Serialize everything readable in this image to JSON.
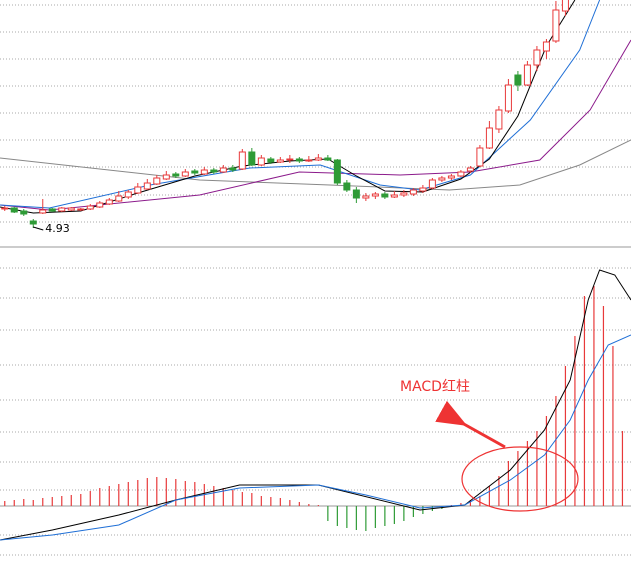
{
  "chart_data": [
    {
      "type": "candlestick",
      "xlim": [
        -0.5,
        65.9
      ],
      "ylim": [
        4.76,
        7.21
      ],
      "grid": true,
      "up_color": "#e8393a",
      "down_color": "#2e9b36",
      "candles": [
        [
          5.12,
          5.15,
          5.1,
          5.13
        ],
        [
          5.13,
          5.14,
          5.08,
          5.09
        ],
        [
          5.1,
          5.12,
          5.05,
          5.07
        ],
        [
          5.0,
          5.02,
          4.93,
          4.97
        ],
        [
          5.08,
          5.22,
          5.07,
          5.11
        ],
        [
          5.12,
          5.13,
          5.09,
          5.1
        ],
        [
          5.1,
          5.14,
          5.09,
          5.13
        ],
        [
          5.11,
          5.14,
          5.1,
          5.13
        ],
        [
          5.11,
          5.13,
          5.1,
          5.12
        ],
        [
          5.12,
          5.17,
          5.11,
          5.15
        ],
        [
          5.14,
          5.2,
          5.13,
          5.18
        ],
        [
          5.17,
          5.23,
          5.16,
          5.21
        ],
        [
          5.2,
          5.3,
          5.19,
          5.25
        ],
        [
          5.24,
          5.31,
          5.22,
          5.29
        ],
        [
          5.28,
          5.38,
          5.27,
          5.34
        ],
        [
          5.32,
          5.42,
          5.31,
          5.38
        ],
        [
          5.37,
          5.46,
          5.36,
          5.43
        ],
        [
          5.42,
          5.5,
          5.41,
          5.46
        ],
        [
          5.47,
          5.49,
          5.43,
          5.45
        ],
        [
          5.45,
          5.52,
          5.44,
          5.49
        ],
        [
          5.5,
          5.52,
          5.46,
          5.48
        ],
        [
          5.47,
          5.54,
          5.46,
          5.51
        ],
        [
          5.51,
          5.53,
          5.47,
          5.49
        ],
        [
          5.49,
          5.56,
          5.48,
          5.53
        ],
        [
          5.53,
          5.56,
          5.49,
          5.51
        ],
        [
          5.52,
          5.72,
          5.51,
          5.69
        ],
        [
          5.69,
          5.73,
          5.55,
          5.56
        ],
        [
          5.56,
          5.66,
          5.55,
          5.63
        ],
        [
          5.62,
          5.64,
          5.57,
          5.59
        ],
        [
          5.59,
          5.64,
          5.58,
          5.61
        ],
        [
          5.61,
          5.66,
          5.58,
          5.62
        ],
        [
          5.62,
          5.64,
          5.58,
          5.6
        ],
        [
          5.6,
          5.65,
          5.59,
          5.61
        ],
        [
          5.61,
          5.67,
          5.6,
          5.63
        ],
        [
          5.63,
          5.66,
          5.6,
          5.61
        ],
        [
          5.61,
          5.62,
          5.36,
          5.38
        ],
        [
          5.38,
          5.41,
          5.29,
          5.31
        ],
        [
          5.31,
          5.34,
          5.18,
          5.23
        ],
        [
          5.23,
          5.28,
          5.2,
          5.25
        ],
        [
          5.25,
          5.29,
          5.22,
          5.27
        ],
        [
          5.27,
          5.29,
          5.22,
          5.24
        ],
        [
          5.24,
          5.3,
          5.23,
          5.26
        ],
        [
          5.26,
          5.31,
          5.24,
          5.28
        ],
        [
          5.27,
          5.33,
          5.25,
          5.31
        ],
        [
          5.3,
          5.36,
          5.28,
          5.33
        ],
        [
          5.33,
          5.43,
          5.32,
          5.41
        ],
        [
          5.41,
          5.45,
          5.39,
          5.43
        ],
        [
          5.43,
          5.47,
          5.41,
          5.45
        ],
        [
          5.45,
          5.51,
          5.44,
          5.49
        ],
        [
          5.5,
          5.55,
          5.48,
          5.53
        ],
        [
          5.55,
          5.76,
          5.54,
          5.73
        ],
        [
          5.73,
          6.0,
          5.72,
          5.93
        ],
        [
          5.92,
          6.15,
          5.88,
          6.11
        ],
        [
          6.1,
          6.42,
          6.08,
          6.36
        ],
        [
          6.46,
          6.5,
          6.3,
          6.36
        ],
        [
          6.36,
          6.6,
          6.35,
          6.56
        ],
        [
          6.56,
          6.75,
          6.5,
          6.71
        ],
        [
          6.7,
          6.82,
          6.62,
          6.79
        ],
        [
          6.8,
          7.2,
          6.78,
          7.11
        ],
        [
          7.1,
          7.4,
          7.05,
          7.26
        ]
      ],
      "lines": [
        {
          "color": "#888888",
          "x": [
            -0.5,
            20.5,
            34.2,
            46.8,
            54.2,
            60.5,
            65.9
          ],
          "values": [
            5.63,
            5.41,
            5.36,
            5.31,
            5.36,
            5.56,
            5.81
          ]
        },
        {
          "color": "#8b1a8b",
          "x": [
            -0.5,
            4.7,
            20.5,
            31,
            41.6,
            49,
            56.3,
            61.6,
            65.9
          ],
          "values": [
            5.16,
            5.11,
            5.26,
            5.49,
            5.46,
            5.49,
            5.61,
            6.11,
            6.81
          ]
        },
        {
          "color": "#1f6fd6",
          "x": [
            -0.5,
            4.7,
            15.3,
            25.8,
            33.2,
            39.5,
            43.7,
            49,
            55.3,
            60.5,
            62.6
          ],
          "values": [
            5.16,
            5.13,
            5.36,
            5.53,
            5.56,
            5.36,
            5.31,
            5.46,
            6.01,
            6.71,
            7.21
          ]
        },
        {
          "color": "#000000",
          "x": [
            -0.5,
            3,
            8,
            14,
            20,
            25,
            30,
            34,
            37,
            40,
            44,
            48,
            51,
            54,
            57,
            60
          ],
          "values": [
            5.14,
            5.08,
            5.1,
            5.28,
            5.45,
            5.55,
            5.6,
            5.62,
            5.45,
            5.3,
            5.29,
            5.42,
            5.62,
            6.05,
            6.75,
            7.21
          ]
        }
      ],
      "low_label": 4.93
    },
    {
      "type": "macd",
      "xlim": [
        -0.5,
        65.9
      ],
      "ylim": [
        -0.057,
        0.256
      ],
      "grid": true,
      "up_color": "#e8393a",
      "down_color": "#2e9b36",
      "histogram": [
        0.005,
        0.006,
        0.007,
        0.006,
        0.008,
        0.009,
        0.01,
        0.011,
        0.012,
        0.015,
        0.018,
        0.02,
        0.022,
        0.024,
        0.026,
        0.028,
        0.029,
        0.028,
        0.027,
        0.025,
        0.024,
        0.022,
        0.02,
        0.018,
        0.016,
        0.014,
        0.013,
        0.01,
        0.009,
        0.008,
        0.006,
        0.004,
        0.002,
        0.001,
        -0.015,
        -0.02,
        -0.022,
        -0.024,
        -0.025,
        -0.022,
        -0.02,
        -0.018,
        -0.015,
        -0.011,
        -0.008,
        -0.005,
        -0.003,
        0.001,
        0.003,
        0.006,
        0.01,
        0.02,
        0.03,
        0.045,
        0.055,
        0.065,
        0.075,
        0.09,
        0.11,
        0.14,
        0.17,
        0.21,
        0.22,
        0.2,
        0.16,
        0.075
      ],
      "lines": [
        {
          "color": "#000000",
          "x": [
            -0.5,
            5,
            12,
            18,
            24.7,
            33,
            43.7,
            48.4,
            53.2,
            56.8,
            59.5,
            61.4,
            62.6,
            64.2,
            65.9
          ],
          "values": [
            -0.034,
            -0.024,
            -0.009,
            0.006,
            0.021,
            0.021,
            -0.004,
            0.001,
            0.036,
            0.076,
            0.126,
            0.206,
            0.236,
            0.231,
            0.206
          ]
        },
        {
          "color": "#1f6fd6",
          "x": [
            -0.5,
            5,
            12,
            18,
            24.7,
            33,
            38,
            43.7,
            48.4,
            53.2,
            56.8,
            59.5,
            61.4,
            63.5,
            65.9
          ],
          "values": [
            -0.034,
            -0.029,
            -0.019,
            0.006,
            0.018,
            0.021,
            0.011,
            -0.002,
            0.001,
            0.026,
            0.051,
            0.086,
            0.126,
            0.161,
            0.171
          ]
        }
      ],
      "annotation": "MACD红柱"
    }
  ]
}
